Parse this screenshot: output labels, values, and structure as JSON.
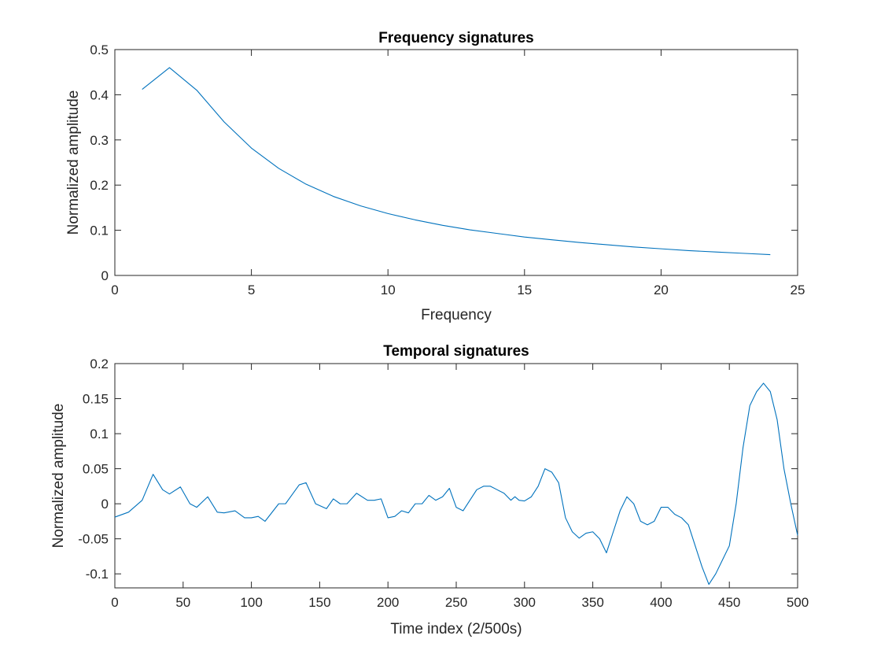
{
  "chart_data": [
    {
      "type": "line",
      "title": "Frequency signatures",
      "xlabel": "Frequency",
      "ylabel": "Normalized amplitude",
      "xlim": [
        0,
        25
      ],
      "ylim": [
        0,
        0.5
      ],
      "xticks": [
        0,
        5,
        10,
        15,
        20,
        25
      ],
      "xtick_labels": [
        "0",
        "5",
        "10",
        "15",
        "20",
        "25"
      ],
      "yticks": [
        0,
        0.1,
        0.2,
        0.3,
        0.4,
        0.5
      ],
      "ytick_labels": [
        "0",
        "0.1",
        "0.2",
        "0.3",
        "0.4",
        "0.5"
      ],
      "grid": false,
      "color": "#0072BD",
      "series": [
        {
          "x": [
            1,
            2,
            3,
            4,
            5,
            6,
            7,
            8,
            9,
            10,
            11,
            12,
            13,
            14,
            15,
            16,
            17,
            18,
            19,
            20,
            21,
            22,
            23,
            24
          ],
          "y": [
            0.412,
            0.46,
            0.41,
            0.34,
            0.282,
            0.237,
            0.202,
            0.175,
            0.154,
            0.137,
            0.123,
            0.111,
            0.101,
            0.093,
            0.085,
            0.079,
            0.073,
            0.068,
            0.063,
            0.059,
            0.055,
            0.052,
            0.049,
            0.046
          ]
        }
      ]
    },
    {
      "type": "line",
      "title": "Temporal signatures",
      "xlabel": "Time index (2/500s)",
      "ylabel": "Normalized amplitude",
      "xlim": [
        0,
        500
      ],
      "ylim": [
        -0.12,
        0.2
      ],
      "xticks": [
        0,
        50,
        100,
        150,
        200,
        250,
        300,
        350,
        400,
        450,
        500
      ],
      "xtick_labels": [
        "0",
        "50",
        "100",
        "150",
        "200",
        "250",
        "300",
        "350",
        "400",
        "450",
        "500"
      ],
      "yticks": [
        -0.1,
        -0.05,
        0,
        0.05,
        0.1,
        0.15,
        0.2
      ],
      "ytick_labels": [
        "-0.1",
        "-0.05",
        "0",
        "0.05",
        "0.1",
        "0.15",
        "0.2"
      ],
      "grid": false,
      "color": "#0072BD",
      "series": [
        {
          "x": [
            0,
            10,
            20,
            28,
            35,
            40,
            48,
            55,
            60,
            68,
            75,
            80,
            88,
            95,
            100,
            105,
            110,
            120,
            125,
            135,
            140,
            147,
            155,
            160,
            165,
            170,
            177,
            185,
            190,
            195,
            200,
            205,
            210,
            215,
            220,
            225,
            230,
            235,
            240,
            245,
            250,
            255,
            260,
            265,
            270,
            275,
            280,
            285,
            290,
            293,
            296,
            300,
            305,
            310,
            315,
            320,
            325,
            330,
            335,
            340,
            345,
            350,
            355,
            360,
            365,
            370,
            375,
            380,
            385,
            390,
            395,
            400,
            405,
            410,
            415,
            420,
            425,
            430,
            435,
            440,
            445,
            450,
            455,
            460,
            465,
            470,
            475,
            480,
            485,
            490,
            495,
            500
          ],
          "y": [
            -0.019,
            -0.012,
            0.005,
            0.042,
            0.02,
            0.014,
            0.024,
            0.0,
            -0.005,
            0.01,
            -0.012,
            -0.013,
            -0.01,
            -0.02,
            -0.02,
            -0.018,
            -0.025,
            0.0,
            0.0,
            0.027,
            0.03,
            0.0,
            -0.007,
            0.007,
            0.0,
            0.0,
            0.015,
            0.005,
            0.005,
            0.007,
            -0.02,
            -0.018,
            -0.01,
            -0.013,
            0.0,
            0.0,
            0.012,
            0.005,
            0.01,
            0.022,
            -0.005,
            -0.01,
            0.005,
            0.02,
            0.025,
            0.025,
            0.02,
            0.015,
            0.005,
            0.01,
            0.005,
            0.004,
            0.01,
            0.025,
            0.05,
            0.045,
            0.03,
            -0.02,
            -0.04,
            -0.049,
            -0.042,
            -0.04,
            -0.05,
            -0.07,
            -0.04,
            -0.01,
            0.01,
            0.0,
            -0.025,
            -0.03,
            -0.025,
            -0.005,
            -0.005,
            -0.015,
            -0.02,
            -0.03,
            -0.06,
            -0.09,
            -0.115,
            -0.1,
            -0.08,
            -0.06,
            0.0,
            0.08,
            0.14,
            0.16,
            0.172,
            0.16,
            0.12,
            0.05,
            0.0,
            -0.045
          ]
        }
      ]
    }
  ]
}
